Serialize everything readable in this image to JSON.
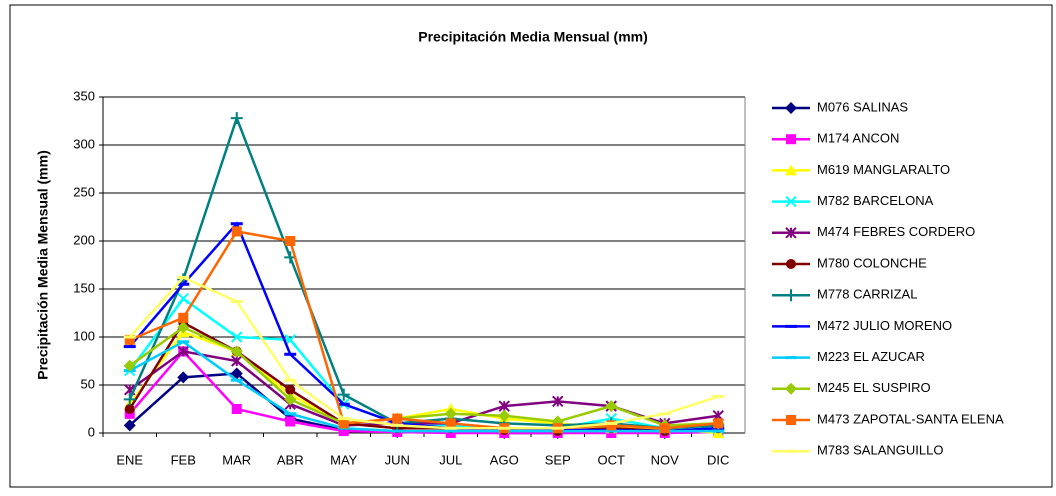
{
  "chart_data": {
    "type": "line",
    "title": "Precipitación Media Mensual (mm)",
    "y_label": "Precipitación Media Mensual (mm)",
    "categories": [
      "ENE",
      "FEB",
      "MAR",
      "ABR",
      "MAY",
      "JUN",
      "JUL",
      "AGO",
      "SEP",
      "OCT",
      "NOV",
      "DIC"
    ],
    "ylim": [
      0,
      350
    ],
    "yticks": [
      0,
      50,
      100,
      150,
      200,
      250,
      300,
      350
    ],
    "grid": true,
    "legend": "right",
    "series": [
      {
        "name": "M076 SALINAS",
        "color": "#000080",
        "marker": "diamond",
        "values": [
          8,
          58,
          62,
          15,
          3,
          1,
          1,
          0,
          0,
          1,
          0,
          2
        ]
      },
      {
        "name": "M174 ANCON",
        "color": "#ff00ff",
        "marker": "square",
        "values": [
          20,
          85,
          25,
          12,
          2,
          1,
          0,
          0,
          0,
          0,
          0,
          1
        ]
      },
      {
        "name": "M619 MANGLARALTO",
        "color": "#ffff00",
        "marker": "triangle",
        "values": [
          30,
          105,
          85,
          40,
          10,
          15,
          25,
          15,
          10,
          5,
          5,
          0
        ]
      },
      {
        "name": "M782 BARCELONA",
        "color": "#00ffff",
        "marker": "x",
        "values": [
          65,
          140,
          100,
          97,
          30,
          10,
          8,
          5,
          5,
          15,
          5,
          5
        ]
      },
      {
        "name": "M474 FEBRES CORDERO",
        "color": "#800080",
        "marker": "star",
        "values": [
          45,
          85,
          75,
          30,
          8,
          10,
          10,
          28,
          33,
          28,
          10,
          18
        ]
      },
      {
        "name": "M780 COLONCHE",
        "color": "#800000",
        "marker": "circle",
        "values": [
          25,
          115,
          85,
          45,
          10,
          5,
          5,
          3,
          2,
          5,
          2,
          5
        ]
      },
      {
        "name": "M778 CARRIZAL",
        "color": "#008080",
        "marker": "plus",
        "values": [
          35,
          160,
          328,
          183,
          40,
          10,
          15,
          10,
          8,
          10,
          5,
          8
        ]
      },
      {
        "name": "M472 JULIO MORENO",
        "color": "#0000ff",
        "marker": "dash",
        "values": [
          90,
          155,
          218,
          82,
          30,
          10,
          5,
          3,
          3,
          3,
          2,
          5
        ]
      },
      {
        "name": "M223 EL AZUCAR",
        "color": "#00ccff",
        "marker": "dash",
        "values": [
          65,
          95,
          55,
          20,
          5,
          2,
          2,
          2,
          2,
          2,
          2,
          2
        ]
      },
      {
        "name": "M245 EL SUSPIRO",
        "color": "#99cc00",
        "marker": "diamond",
        "values": [
          70,
          110,
          85,
          35,
          10,
          15,
          20,
          18,
          12,
          28,
          8,
          10
        ]
      },
      {
        "name": "M473 ZAPOTAL-SANTA ELENA",
        "color": "#ff6600",
        "marker": "square",
        "values": [
          97,
          120,
          210,
          200,
          10,
          15,
          10,
          5,
          5,
          8,
          5,
          10
        ]
      },
      {
        "name": "M783 SALANGUILLO",
        "color": "#ffff66",
        "marker": "dash",
        "values": [
          100,
          162,
          137,
          55,
          15,
          8,
          5,
          5,
          5,
          10,
          20,
          38
        ]
      }
    ]
  }
}
